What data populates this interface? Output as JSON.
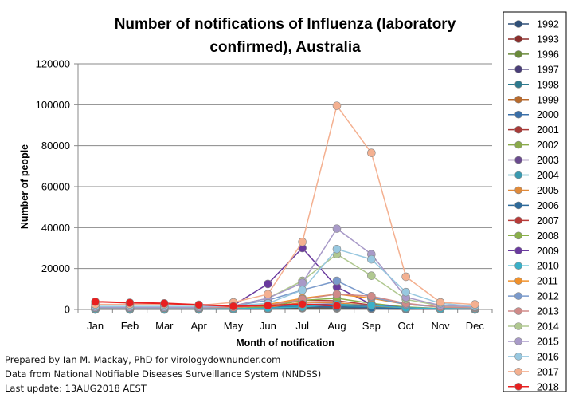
{
  "chart_data": {
    "type": "line",
    "title_lines": [
      "Number of notifications  of Influenza (laboratory",
      "confirmed), Australia"
    ],
    "xlabel": "Month of notification",
    "ylabel": "Number of people",
    "categories": [
      "Jan",
      "Feb",
      "Mar",
      "Apr",
      "May",
      "Jun",
      "Jul",
      "Aug",
      "Sep",
      "Oct",
      "Nov",
      "Dec"
    ],
    "ylim": [
      0,
      120000
    ],
    "yticks": [
      0,
      20000,
      40000,
      60000,
      80000,
      100000,
      120000
    ],
    "ytick_labels": [
      "0",
      "20000",
      "40000",
      "60000",
      "80000",
      "100000",
      "120000"
    ],
    "grid": "horizontal",
    "legend_position": "right",
    "series": [
      {
        "name": "1992",
        "color": "#2f4f77",
        "values": [
          60,
          60,
          60,
          60,
          80,
          200,
          600,
          500,
          300,
          150,
          80,
          60
        ]
      },
      {
        "name": "1993",
        "color": "#8b2e2b",
        "values": [
          60,
          60,
          60,
          60,
          80,
          250,
          800,
          700,
          400,
          150,
          80,
          60
        ]
      },
      {
        "name": "1996",
        "color": "#6a8a3a",
        "values": [
          60,
          60,
          60,
          60,
          100,
          300,
          900,
          700,
          400,
          200,
          100,
          60
        ]
      },
      {
        "name": "1997",
        "color": "#4a3e78",
        "values": [
          60,
          60,
          60,
          60,
          100,
          300,
          1000,
          900,
          500,
          200,
          100,
          60
        ]
      },
      {
        "name": "1998",
        "color": "#2e7a8e",
        "values": [
          60,
          60,
          60,
          60,
          100,
          400,
          1200,
          1100,
          600,
          250,
          100,
          60
        ]
      },
      {
        "name": "1999",
        "color": "#b86a2c",
        "values": [
          60,
          60,
          60,
          60,
          150,
          500,
          1500,
          1300,
          700,
          300,
          120,
          60
        ]
      },
      {
        "name": "2000",
        "color": "#3a6fa8",
        "values": [
          80,
          80,
          80,
          80,
          150,
          500,
          1600,
          1400,
          800,
          300,
          120,
          80
        ]
      },
      {
        "name": "2001",
        "color": "#a83a38",
        "values": [
          100,
          100,
          100,
          100,
          200,
          500,
          1400,
          1300,
          700,
          300,
          150,
          100
        ]
      },
      {
        "name": "2002",
        "color": "#8aaa4a",
        "values": [
          120,
          120,
          120,
          120,
          200,
          700,
          2200,
          2500,
          1300,
          500,
          200,
          120
        ]
      },
      {
        "name": "2003",
        "color": "#6a4a8e",
        "values": [
          150,
          150,
          150,
          150,
          250,
          800,
          2500,
          2700,
          1400,
          500,
          200,
          150
        ]
      },
      {
        "name": "2004",
        "color": "#3a9ab0",
        "values": [
          150,
          150,
          150,
          150,
          250,
          700,
          2000,
          2000,
          1100,
          450,
          200,
          150
        ]
      },
      {
        "name": "2005",
        "color": "#e08a3a",
        "values": [
          200,
          200,
          200,
          250,
          400,
          1000,
          3500,
          3300,
          1800,
          700,
          300,
          200
        ]
      },
      {
        "name": "2006",
        "color": "#2e6a9a",
        "values": [
          200,
          200,
          200,
          200,
          300,
          700,
          1500,
          1300,
          800,
          400,
          200,
          200
        ]
      },
      {
        "name": "2007",
        "color": "#b83a38",
        "values": [
          250,
          250,
          250,
          250,
          400,
          1200,
          4500,
          4300,
          2200,
          900,
          350,
          250
        ]
      },
      {
        "name": "2008",
        "color": "#8ab04a",
        "values": [
          300,
          300,
          300,
          300,
          500,
          1400,
          4500,
          5500,
          3000,
          1200,
          500,
          300
        ]
      },
      {
        "name": "2009",
        "color": "#6a3a9e",
        "values": [
          500,
          500,
          500,
          600,
          2000,
          12500,
          30000,
          11000,
          2500,
          800,
          400,
          300
        ]
      },
      {
        "name": "2010",
        "color": "#3ab0c8",
        "values": [
          300,
          300,
          300,
          300,
          400,
          700,
          1200,
          2500,
          2000,
          800,
          400,
          300
        ]
      },
      {
        "name": "2011",
        "color": "#f0902a",
        "values": [
          1200,
          1100,
          1000,
          1000,
          1200,
          2500,
          5500,
          7500,
          5500,
          2500,
          1200,
          800
        ]
      },
      {
        "name": "2012",
        "color": "#7a9acb",
        "values": [
          1000,
          1000,
          1000,
          1000,
          1800,
          4500,
          9500,
          14000,
          6000,
          2500,
          1200,
          800
        ]
      },
      {
        "name": "2013",
        "color": "#d08a88",
        "values": [
          800,
          800,
          800,
          800,
          1000,
          2000,
          5000,
          7500,
          6500,
          3000,
          1200,
          800
        ]
      },
      {
        "name": "2014",
        "color": "#b0c890",
        "values": [
          1000,
          1000,
          1000,
          1000,
          1800,
          5500,
          14000,
          27000,
          16500,
          5000,
          1800,
          1200
        ]
      },
      {
        "name": "2015",
        "color": "#a89ac8",
        "values": [
          1000,
          1000,
          1000,
          1000,
          1800,
          5500,
          13000,
          39500,
          27000,
          6000,
          2000,
          1300
        ]
      },
      {
        "name": "2016",
        "color": "#98c8e0",
        "values": [
          1500,
          1500,
          1500,
          1500,
          1800,
          3000,
          9500,
          29500,
          24500,
          8500,
          3000,
          1500
        ]
      },
      {
        "name": "2017",
        "color": "#f4b090",
        "values": [
          2500,
          2500,
          2500,
          2000,
          3500,
          7500,
          33000,
          99500,
          76500,
          16000,
          3500,
          2500
        ]
      },
      {
        "name": "2018",
        "color": "#e82020",
        "values": [
          3800,
          3300,
          3000,
          2300,
          1600,
          1900,
          2600,
          1800,
          null,
          null,
          null,
          null
        ]
      }
    ]
  },
  "credits": {
    "prepared_by": "Prepared by Ian M. Mackay, PhD for virologydownunder.com",
    "source": "Data from National Notifiable Diseases Surveillance System (NNDSS)",
    "updated": "Last update: 13AUG2018 AEST"
  }
}
